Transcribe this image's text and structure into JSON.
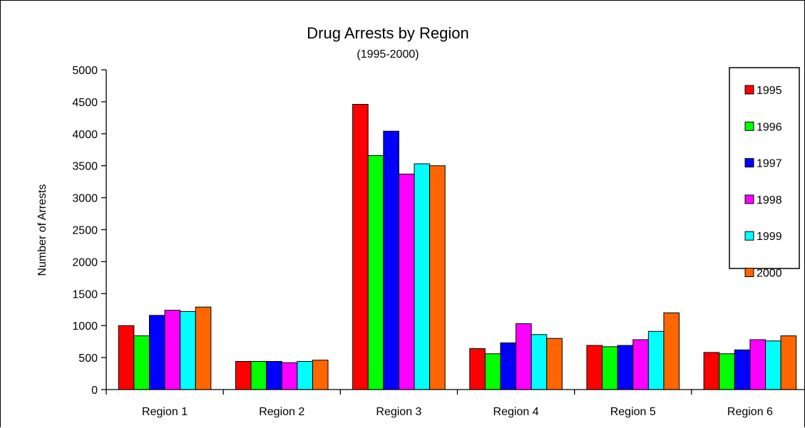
{
  "chart_data": {
    "type": "bar",
    "title": "Drug Arrests by Region",
    "subtitle": "(1995-2000)",
    "xlabel": "",
    "ylabel": "Number of Arrests",
    "ylim": [
      0,
      5000
    ],
    "yticks": [
      "0",
      "500",
      "1000",
      "1500",
      "2000",
      "2500",
      "3000",
      "3500",
      "4000",
      "4500",
      "5000"
    ],
    "categories": [
      "Region 1",
      "Region 2",
      "Region 3",
      "Region 4",
      "Region 5",
      "Region 6"
    ],
    "grid": false,
    "legend_position": "right",
    "series": [
      {
        "name": "1995",
        "color": "#ff0000",
        "values": [
          1000,
          440,
          4460,
          640,
          690,
          580
        ]
      },
      {
        "name": "1996",
        "color": "#00ff00",
        "values": [
          840,
          440,
          3660,
          560,
          670,
          560
        ]
      },
      {
        "name": "1997",
        "color": "#0000ff",
        "values": [
          1160,
          440,
          4040,
          730,
          690,
          620
        ]
      },
      {
        "name": "1998",
        "color": "#ff00ff",
        "values": [
          1240,
          420,
          3370,
          1030,
          780,
          780
        ]
      },
      {
        "name": "1999",
        "color": "#00ffff",
        "values": [
          1220,
          440,
          3530,
          860,
          910,
          760
        ]
      },
      {
        "name": "2000",
        "color": "#ff6600",
        "values": [
          1290,
          460,
          3500,
          800,
          1200,
          840
        ]
      }
    ]
  }
}
